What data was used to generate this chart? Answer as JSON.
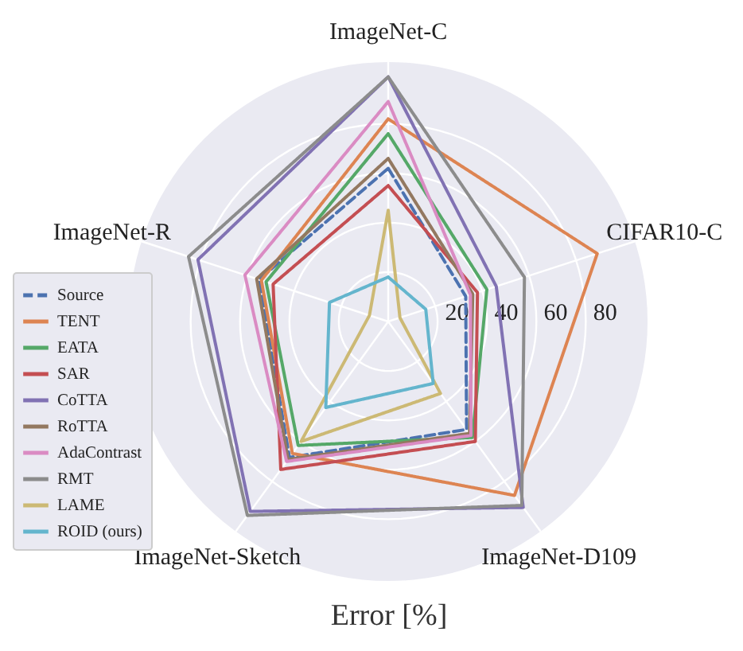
{
  "chart_data": {
    "type": "radar",
    "xlabel": "Error [%]",
    "categories": [
      "ImageNet-C",
      "CIFAR10-C",
      "ImageNet-D109",
      "ImageNet-Sketch",
      "ImageNet-R"
    ],
    "ylim": [
      0,
      105
    ],
    "yticks": [
      20,
      40,
      60,
      80
    ],
    "grid": true,
    "legend": "bottom left",
    "marker": "none",
    "series": [
      {
        "name": "Source",
        "color": "#4c72b0",
        "line_style": "dashed",
        "values": [
          62,
          33,
          54,
          68,
          55
        ]
      },
      {
        "name": "TENT",
        "color": "#dd8452",
        "values": [
          82,
          89,
          87,
          66,
          54
        ]
      },
      {
        "name": "EATA",
        "color": "#55a868",
        "values": [
          76,
          42,
          58,
          62,
          52
        ]
      },
      {
        "name": "SAR",
        "color": "#c44e52",
        "values": [
          55,
          38,
          60,
          74,
          49
        ]
      },
      {
        "name": "CoTTA",
        "color": "#8172b3",
        "values": [
          99,
          46,
          93,
          95,
          81
        ]
      },
      {
        "name": "RoTTA",
        "color": "#937860",
        "values": [
          66,
          36,
          56,
          69,
          56
        ]
      },
      {
        "name": "AdaContrast",
        "color": "#da8bc3",
        "values": [
          89,
          35,
          57,
          70,
          61
        ]
      },
      {
        "name": "RMT",
        "color": "#8c8c8c",
        "values": [
          99,
          58,
          92,
          97,
          85
        ]
      },
      {
        "name": "LAME",
        "color": "#ccb974",
        "values": [
          45,
          5,
          36,
          60,
          8
        ]
      },
      {
        "name": "ROID (ours)",
        "color": "#64b5cd",
        "values": [
          18,
          16,
          31,
          43,
          25
        ]
      }
    ]
  }
}
